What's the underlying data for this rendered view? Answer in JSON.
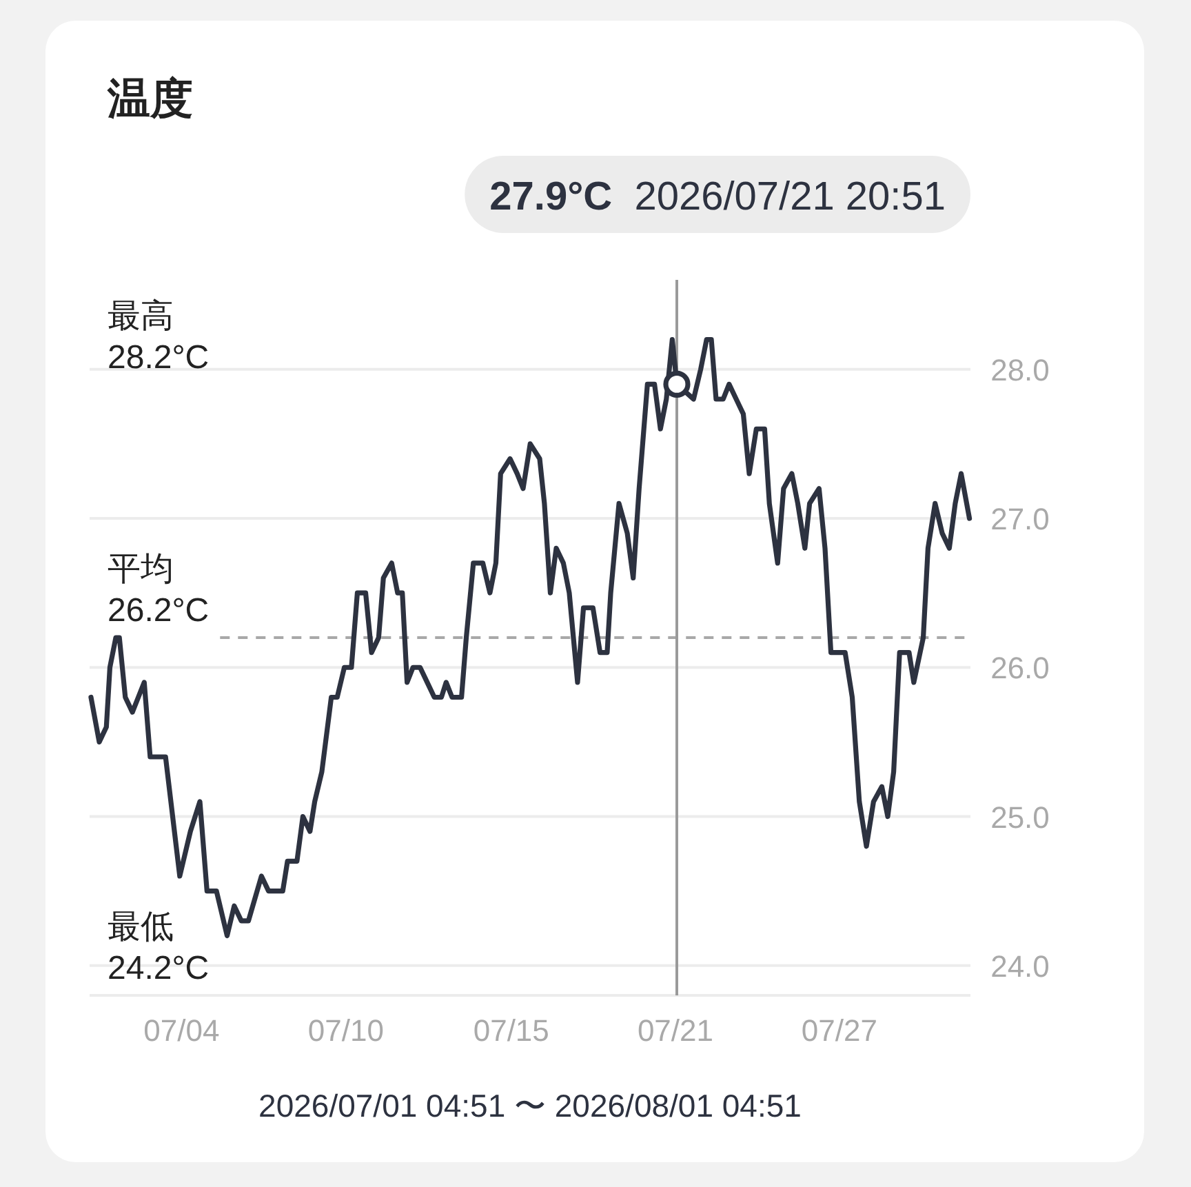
{
  "chart_data": {
    "type": "line",
    "title": "温度",
    "subtitle": "2026/07/01 04:51 〜 2026/08/01 04:51",
    "x": [
      "2026-07-01T06:00",
      "2026-07-01T13:00",
      "2026-07-01T19:00",
      "2026-07-01T22:00",
      "2026-07-02T03:00",
      "2026-07-02T06:00",
      "2026-07-02T11:00",
      "2026-07-02T17:00",
      "2026-07-03T03:00",
      "2026-07-03T08:00",
      "2026-07-03T21:00",
      "2026-07-04T03:00",
      "2026-07-04T09:00",
      "2026-07-04T18:00",
      "2026-07-05T02:00",
      "2026-07-05T08:00",
      "2026-07-05T16:00",
      "2026-07-06T01:00",
      "2026-07-06T07:00",
      "2026-07-06T13:00",
      "2026-07-06T19:00",
      "2026-07-07T06:00",
      "2026-07-07T12:00",
      "2026-07-08T00:00",
      "2026-07-08T04:00",
      "2026-07-08T12:00",
      "2026-07-08T17:00",
      "2026-07-08T23:00",
      "2026-07-09T03:00",
      "2026-07-09T09:00",
      "2026-07-09T17:00",
      "2026-07-09T22:00",
      "2026-07-10T04:00",
      "2026-07-10T10:00",
      "2026-07-10T15:00",
      "2026-07-10T22:00",
      "2026-07-11T03:00",
      "2026-07-11T09:00",
      "2026-07-11T13:00",
      "2026-07-11T20:00",
      "2026-07-12T01:00",
      "2026-07-12T05:00",
      "2026-07-12T09:00",
      "2026-07-12T14:00",
      "2026-07-12T20:00",
      "2026-07-13T02:00",
      "2026-07-13T08:00",
      "2026-07-13T14:00",
      "2026-07-13T18:00",
      "2026-07-13T23:00",
      "2026-07-14T07:00",
      "2026-07-14T11:00",
      "2026-07-14T17:00",
      "2026-07-15T01:00",
      "2026-07-15T07:00",
      "2026-07-15T12:00",
      "2026-07-15T16:00",
      "2026-07-16T00:00",
      "2026-07-16T06:00",
      "2026-07-16T11:00",
      "2026-07-16T17:00",
      "2026-07-17T01:00",
      "2026-07-17T05:00",
      "2026-07-17T10:00",
      "2026-07-17T15:00",
      "2026-07-17T21:00",
      "2026-07-18T02:00",
      "2026-07-18T09:00",
      "2026-07-18T14:00",
      "2026-07-18T22:00",
      "2026-07-19T04:00",
      "2026-07-19T10:00",
      "2026-07-19T13:00",
      "2026-07-19T20:00",
      "2026-07-20T03:00",
      "2026-07-20T08:00",
      "2026-07-20T13:00",
      "2026-07-20T20:00",
      "2026-07-21T02:00",
      "2026-07-21T07:00",
      "2026-07-21T12:00",
      "2026-07-21T17:00",
      "2026-07-21T20:51",
      "2026-07-22T11:00",
      "2026-07-22T17:00",
      "2026-07-22T22:00",
      "2026-07-23T02:00",
      "2026-07-23T06:00",
      "2026-07-23T12:00",
      "2026-07-23T17:00",
      "2026-07-23T23:00",
      "2026-07-24T05:00",
      "2026-07-24T10:00",
      "2026-07-24T16:00",
      "2026-07-24T23:00",
      "2026-07-25T03:00",
      "2026-07-25T10:00",
      "2026-07-25T15:00",
      "2026-07-25T22:00",
      "2026-07-26T03:00",
      "2026-07-26T09:00",
      "2026-07-26T13:00",
      "2026-07-26T21:00",
      "2026-07-27T02:00",
      "2026-07-27T07:00",
      "2026-07-27T19:00",
      "2026-07-28T01:00",
      "2026-07-28T07:00",
      "2026-07-28T13:00",
      "2026-07-28T19:00",
      "2026-07-29T02:00",
      "2026-07-29T07:00",
      "2026-07-29T12:00",
      "2026-07-29T17:00",
      "2026-07-30T01:00",
      "2026-07-30T05:00",
      "2026-07-30T13:00",
      "2026-07-30T17:00",
      "2026-07-30T23:00",
      "2026-07-31T05:00",
      "2026-07-31T11:00",
      "2026-07-31T16:00",
      "2026-07-31T21:00",
      "2026-08-01T04:00"
    ],
    "series": [
      {
        "type": "scatter",
        "x": [
          "2026-07-21T20:51"
        ],
        "values": [
          27.9
        ],
        "color": "#2d3240",
        "marker": "circle"
      },
      {
        "color": "#2d3240",
        "values": [
          25.8,
          25.5,
          25.6,
          26.0,
          26.2,
          26.2,
          25.8,
          25.7,
          25.9,
          25.4,
          25.4,
          25.0,
          24.6,
          24.9,
          25.1,
          24.5,
          24.5,
          24.2,
          24.4,
          24.3,
          24.3,
          24.6,
          24.5,
          24.5,
          24.7,
          24.7,
          25.0,
          24.9,
          25.1,
          25.3,
          25.8,
          25.8,
          26.0,
          26.0,
          26.5,
          26.5,
          26.1,
          26.2,
          26.6,
          26.7,
          26.5,
          26.5,
          25.9,
          26.0,
          26.0,
          25.9,
          25.8,
          25.8,
          25.9,
          25.8,
          25.8,
          26.2,
          26.7,
          26.7,
          26.5,
          26.7,
          27.3,
          27.4,
          27.3,
          27.2,
          27.5,
          27.4,
          27.1,
          26.5,
          26.8,
          26.7,
          26.5,
          25.9,
          26.4,
          26.4,
          26.1,
          26.1,
          26.5,
          27.1,
          26.9,
          26.6,
          27.2,
          27.9,
          27.9,
          27.6,
          27.8,
          28.2,
          27.9,
          27.8,
          28.0,
          28.2,
          28.2,
          27.8,
          27.8,
          27.9,
          27.8,
          27.7,
          27.3,
          27.6,
          27.6,
          27.1,
          26.7,
          27.2,
          27.3,
          27.1,
          26.8,
          27.1,
          27.2,
          26.8,
          26.1,
          26.1,
          25.8,
          25.1,
          24.8,
          25.1,
          25.2,
          25.0,
          25.3,
          26.1,
          26.1,
          25.9,
          26.2,
          26.8,
          27.1,
          26.9,
          26.8,
          27.1,
          27.3,
          27.0
        ]
      }
    ],
    "xlim": [
      "2026-07-01T04:51",
      "2026-08-01T04:51"
    ],
    "xticks": [
      {
        "value": "2026-07-04T10:30",
        "label": "07/04"
      },
      {
        "value": "2026-07-10T05:20",
        "label": "07/10"
      },
      {
        "value": "2026-07-16T01:00",
        "label": "07/15"
      },
      {
        "value": "2026-07-21T19:40",
        "label": "07/21"
      },
      {
        "value": "2026-07-27T14:10",
        "label": "07/27"
      }
    ],
    "ylim": [
      23.8,
      28.6
    ],
    "yticks": [
      {
        "value": 24,
        "label": "24.0"
      },
      {
        "value": 25,
        "label": "25.0"
      },
      {
        "value": 26,
        "label": "26.0"
      },
      {
        "value": 27,
        "label": "27.0"
      },
      {
        "value": 28,
        "label": "28.0"
      }
    ],
    "grid": "y",
    "ref_lines": [
      {
        "axis": "y",
        "value": 26.2,
        "label": "平均\n26.2°C",
        "color": "#a8a8a8",
        "line_style": "dashed"
      },
      {
        "axis": "x",
        "value": "2026-07-21T20:51",
        "color": "#9a9a9a"
      }
    ],
    "annotations": [
      "27.9°C 2026/07/21 20:51",
      "最高\n28.2°C",
      "最低\n24.2°C"
    ]
  }
}
